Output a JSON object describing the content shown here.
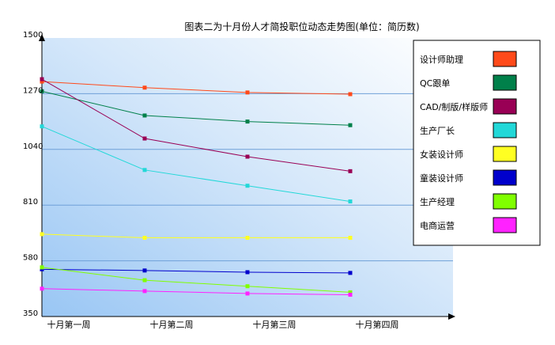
{
  "chart_data": {
    "type": "line",
    "title": "图表二为十月份人才简投职位动态走势图(单位：简历数)",
    "categories": [
      "十月第一周",
      "十月第二周",
      "十月第三周",
      "十月第四周"
    ],
    "ylim": [
      350,
      1500
    ],
    "yticks": [
      350,
      580,
      810,
      1040,
      1270,
      1500
    ],
    "grid": true,
    "legend_position": "right",
    "series": [
      {
        "name": "设计师助理",
        "color": "#FF4A1A",
        "values": [
          1320,
          1295,
          1275,
          1268
        ]
      },
      {
        "name": "QC跟单",
        "color": "#00804A",
        "values": [
          1280,
          1180,
          1155,
          1140
        ]
      },
      {
        "name": "CAD/制版/样版师",
        "color": "#990055",
        "values": [
          1330,
          1085,
          1010,
          950
        ]
      },
      {
        "name": "生产厂长",
        "color": "#22D8D8",
        "values": [
          1135,
          955,
          890,
          825
        ]
      },
      {
        "name": "女装设计师",
        "color": "#FFFF22",
        "values": [
          690,
          675,
          675,
          675
        ]
      },
      {
        "name": "童装设计师",
        "color": "#0000CC",
        "values": [
          545,
          540,
          533,
          530
        ]
      },
      {
        "name": "生产经理",
        "color": "#80FF00",
        "values": [
          553,
          500,
          475,
          450
        ]
      },
      {
        "name": "电商运营",
        "color": "#FF22FF",
        "values": [
          465,
          455,
          445,
          440
        ]
      }
    ]
  }
}
